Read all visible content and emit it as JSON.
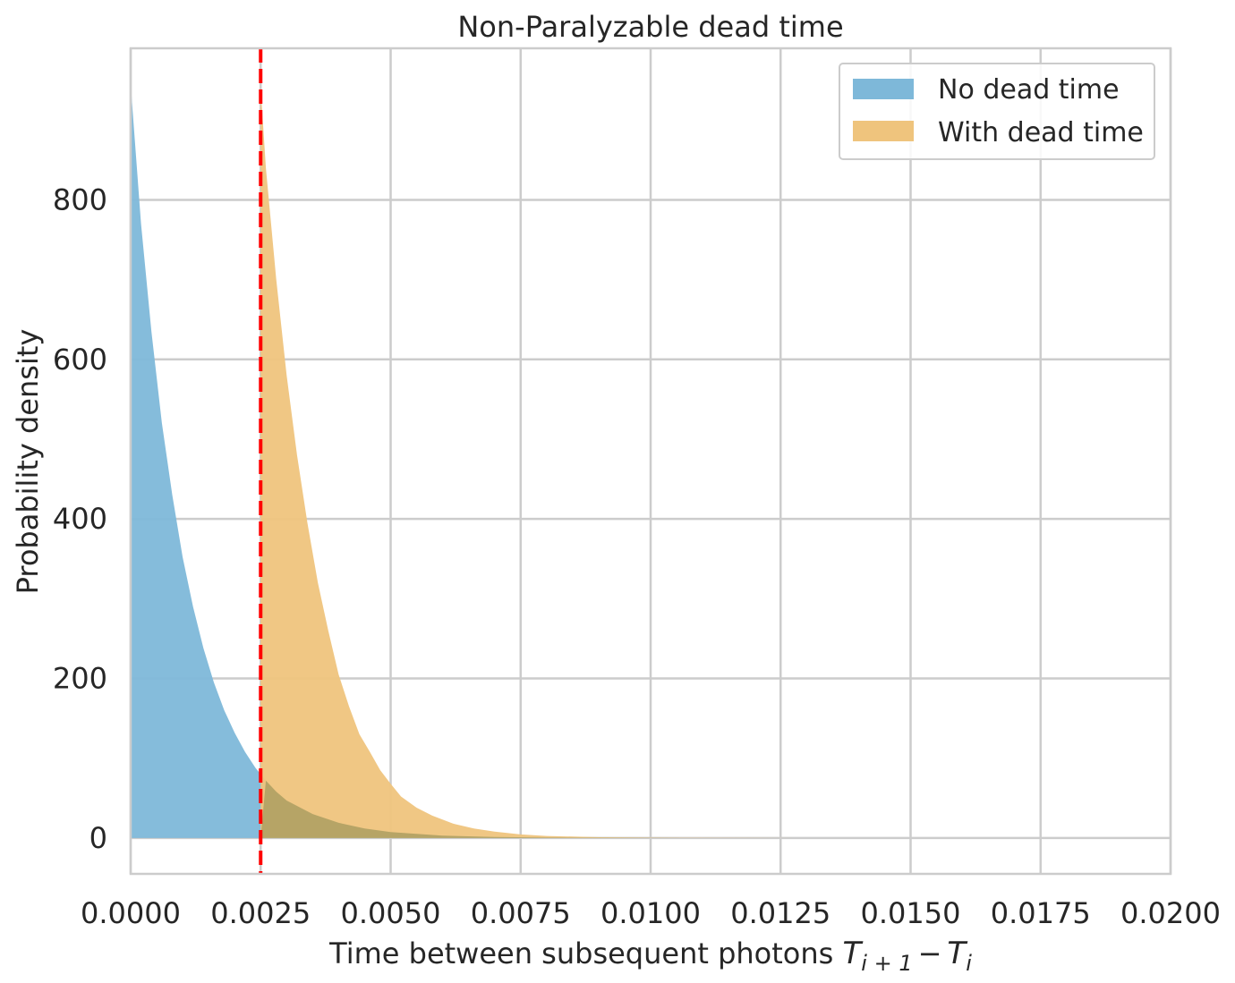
{
  "chart_data": {
    "type": "area",
    "title": "Non-Paralyzable dead time",
    "xlabel_prefix": "Time between subsequent photons ",
    "xlabel_math": {
      "a": "T",
      "a_sub": "i + 1",
      "op": "−",
      "b": "T",
      "b_sub": "i"
    },
    "ylabel": "Probability density",
    "xlim": [
      0,
      0.02
    ],
    "ylim": [
      -45,
      990
    ],
    "xticks": [
      0,
      0.0025,
      0.005,
      0.0075,
      0.01,
      0.0125,
      0.015,
      0.0175,
      0.02
    ],
    "xtick_labels": [
      "0.0000",
      "0.0025",
      "0.0050",
      "0.0075",
      "0.0100",
      "0.0125",
      "0.0150",
      "0.0175",
      "0.0200"
    ],
    "yticks": [
      0,
      200,
      400,
      600,
      800
    ],
    "ytick_labels": [
      "0",
      "200",
      "400",
      "600",
      "800"
    ],
    "grid": true,
    "legend_position": "top-right",
    "dead_time_line": {
      "x": 0.0025,
      "color": "#ff0000",
      "style": "dashed"
    },
    "series": [
      {
        "name": "No dead time",
        "color": "#7eb8d9",
        "x": [
          0.0,
          0.0002,
          0.0004,
          0.0006,
          0.0008,
          0.001,
          0.0012,
          0.0014,
          0.0016,
          0.0018,
          0.002,
          0.0022,
          0.0024,
          0.0026,
          0.0028,
          0.003,
          0.0035,
          0.004,
          0.0045,
          0.005,
          0.006,
          0.007,
          0.008,
          0.01,
          0.012,
          0.0146
        ],
        "y": [
          945,
          770,
          635,
          520,
          430,
          352,
          290,
          238,
          195,
          160,
          132,
          108,
          88,
          72,
          58,
          47,
          30,
          19,
          12,
          7.5,
          3,
          1.2,
          0.5,
          0.1,
          0.02,
          0
        ]
      },
      {
        "name": "With dead time",
        "color": "#efc47d",
        "x": [
          0.0025,
          0.0026,
          0.0028,
          0.003,
          0.0032,
          0.0034,
          0.0036,
          0.0038,
          0.004,
          0.0042,
          0.0044,
          0.0046,
          0.0048,
          0.005,
          0.0052,
          0.0055,
          0.0058,
          0.0062,
          0.0066,
          0.007,
          0.0075,
          0.008,
          0.009,
          0.01,
          0.012,
          0.0146
        ],
        "y": [
          940,
          840,
          700,
          580,
          480,
          395,
          320,
          260,
          205,
          165,
          130,
          108,
          85,
          68,
          52,
          38,
          28,
          18,
          12,
          8,
          4.5,
          2.5,
          1,
          0.4,
          0.05,
          0
        ]
      }
    ]
  }
}
